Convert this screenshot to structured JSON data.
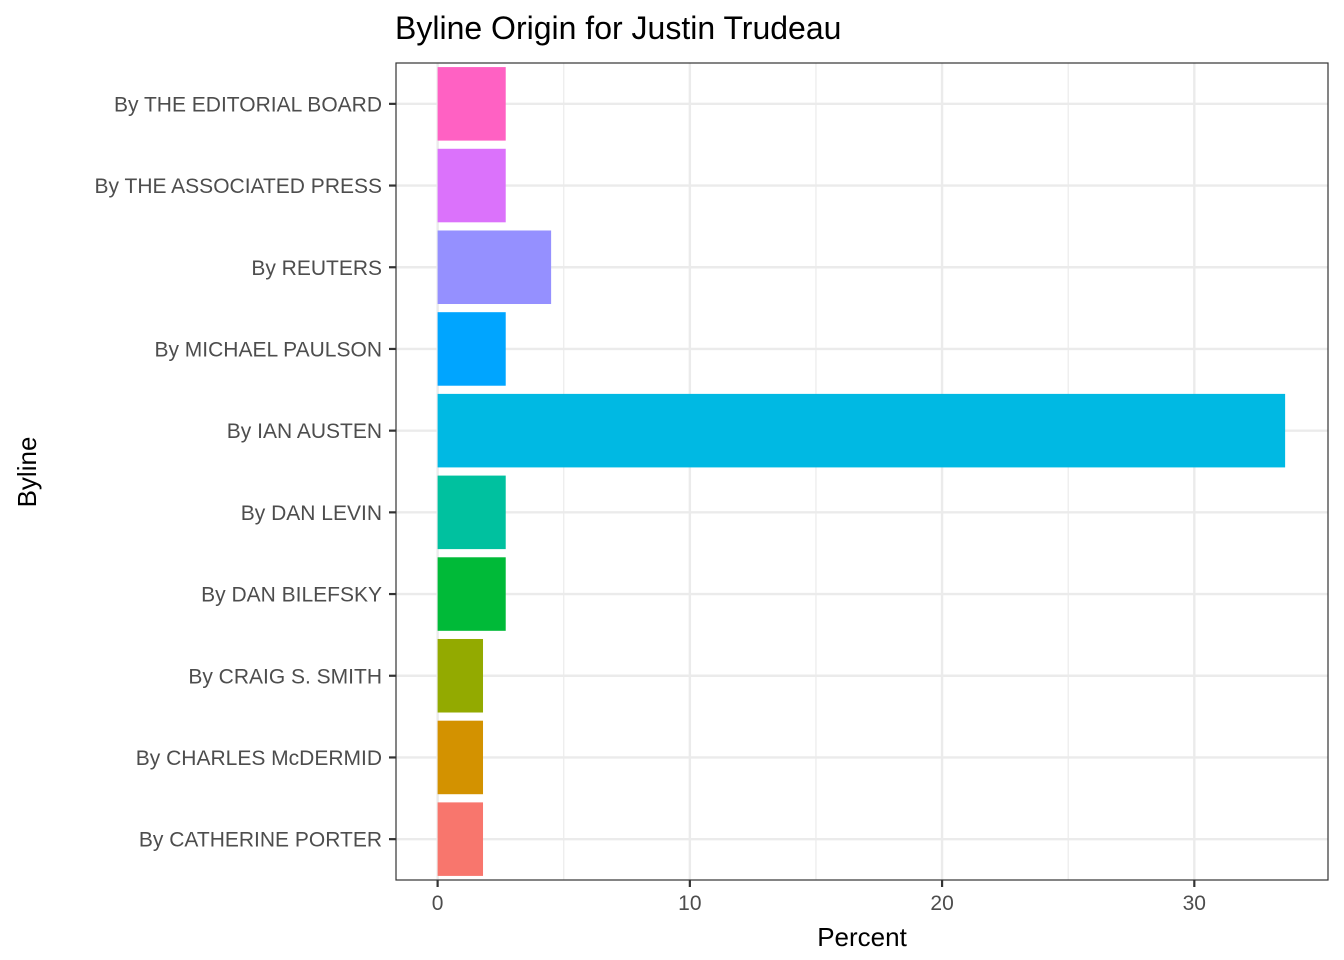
{
  "chart_data": {
    "type": "bar",
    "orientation": "horizontal",
    "title": "Byline Origin for Justin Trudeau",
    "xlabel": "Percent",
    "ylabel": "Byline",
    "xlim": [
      -1.65,
      35.3
    ],
    "xticks": [
      0,
      10,
      20,
      30
    ],
    "x_minor_gridlines": [
      5,
      15,
      25
    ],
    "grid": true,
    "legend": "none",
    "categories": [
      "By CATHERINE PORTER",
      "By CHARLES McDERMID",
      "By CRAIG S. SMITH",
      "By DAN BILEFSKY",
      "By DAN LEVIN",
      "By IAN AUSTEN",
      "By MICHAEL PAULSON",
      "By REUTERS",
      "By THE ASSOCIATED PRESS",
      "By THE EDITORIAL BOARD"
    ],
    "values": [
      1.8,
      1.8,
      1.8,
      2.7,
      2.7,
      33.6,
      2.7,
      4.5,
      2.7,
      2.7
    ],
    "colors": [
      "#F8766D",
      "#D39200",
      "#93AA00",
      "#00BA38",
      "#00C19F",
      "#00B9E3",
      "#00A5FF",
      "#9590FF",
      "#DB72FB",
      "#FF61C3"
    ]
  }
}
